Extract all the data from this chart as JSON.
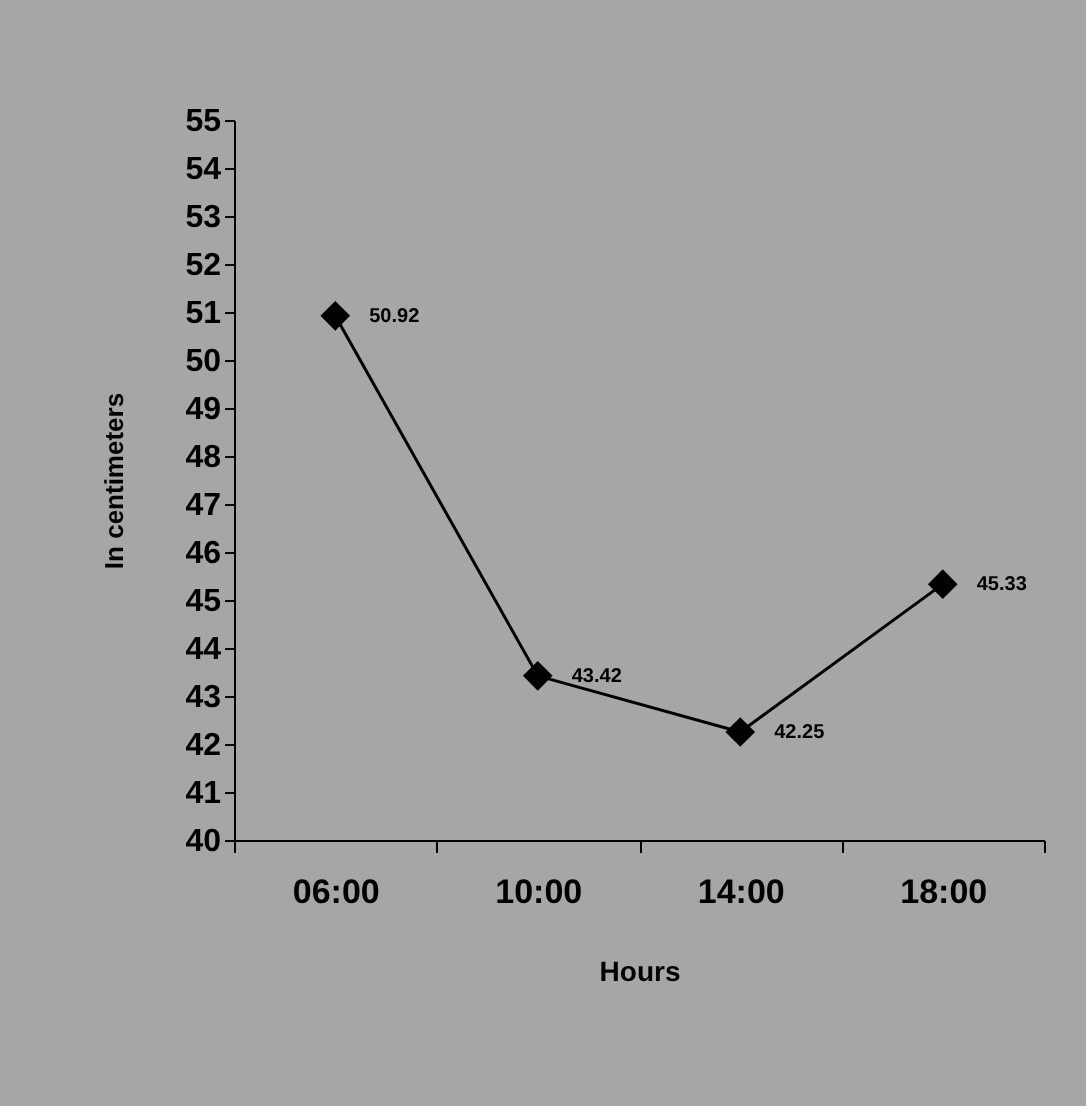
{
  "chart_data": {
    "type": "line",
    "xlabel": "Hours",
    "ylabel": "In centimeters",
    "categories": [
      "06:00",
      "10:00",
      "14:00",
      "18:00"
    ],
    "series": [
      {
        "color": "#000000",
        "values": [
          50.92,
          43.42,
          42.25,
          45.33
        ]
      }
    ],
    "ylim": [
      40,
      55
    ],
    "yticks": [
      40,
      41,
      42,
      43,
      44,
      45,
      46,
      47,
      48,
      49,
      50,
      51,
      52,
      53,
      54,
      55
    ],
    "data_labels": true,
    "marker": "diamond",
    "line_style": "solid"
  }
}
